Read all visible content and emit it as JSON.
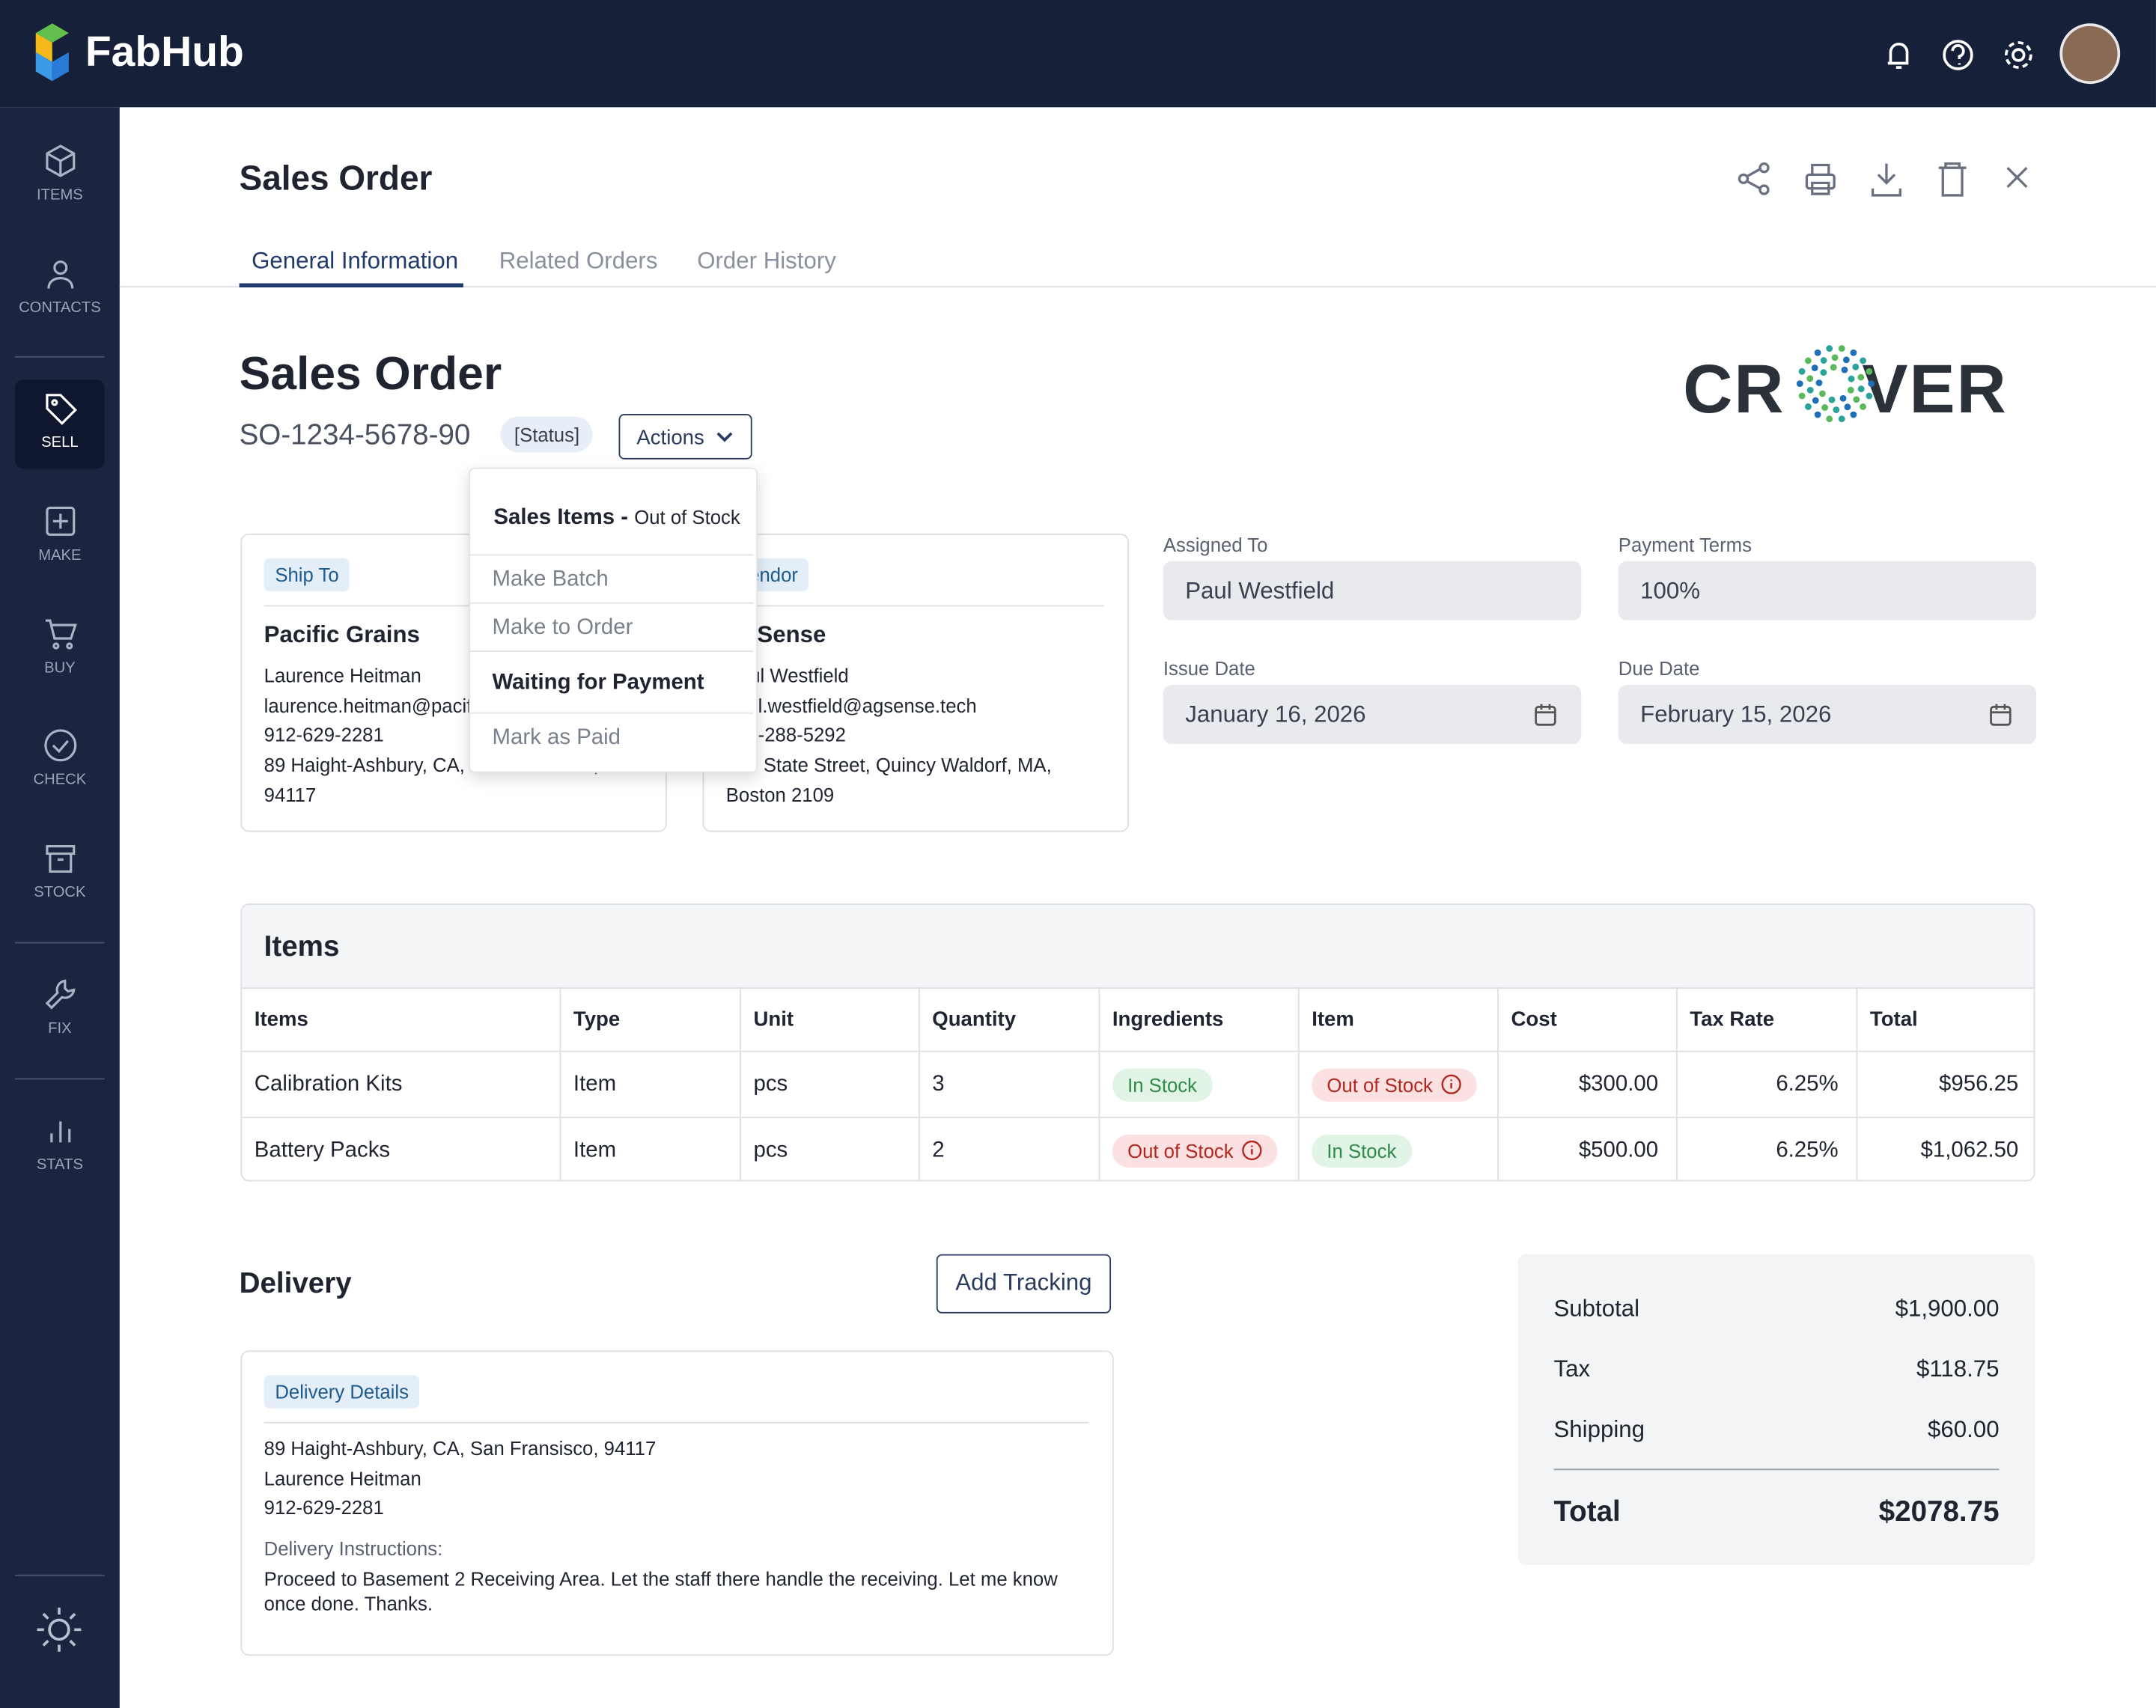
{
  "app": {
    "brand": "FabHub"
  },
  "nav": [
    "ITEMS",
    "CONTACTS",
    "SELL",
    "MAKE",
    "BUY",
    "CHECK",
    "STOCK",
    "FIX",
    "STATS"
  ],
  "header": {
    "title": "Sales Order",
    "tabs": [
      "General Information",
      "Related Orders",
      "Order History"
    ]
  },
  "order": {
    "title": "Sales Order",
    "number": "SO-1234-5678-90",
    "status": "[Status]",
    "actions": "Actions",
    "logo_left": "CR",
    "logo_right": "VER"
  },
  "dropdown": {
    "heading": "Sales Items -",
    "heading_note": "Out of Stock",
    "items": [
      "Make Batch",
      "Make to Order",
      "Waiting for Payment",
      "Mark as Paid"
    ]
  },
  "ship_to": {
    "label": "Ship To",
    "name": "Pacific Grains",
    "contact": "Laurence Heitman",
    "email": "laurence.heitman@pacificgrains.com",
    "phone": "912-629-2281",
    "address": "89 Haight-Ashbury, CA, San Fransisco, 94117"
  },
  "vendor": {
    "label": "Vendor",
    "name": "AgSense",
    "contact": "Paul Westfield",
    "email": "paul.westfield@agsense.tech",
    "phone": "617-288-5292",
    "address": "123 State Street, Quincy Waldorf, MA, Boston 2109"
  },
  "fields": [
    {
      "label": "Assigned To",
      "value": "Paul Westfield"
    },
    {
      "label": "Payment Terms",
      "value": "100%"
    },
    {
      "label": "Issue Date",
      "value": "January 16, 2026"
    },
    {
      "label": "Due Date",
      "value": "February 15, 2026"
    }
  ],
  "items": {
    "title": "Items",
    "columns": [
      "Items",
      "Type",
      "Unit",
      "Quantity",
      "Ingredients",
      "Item",
      "Cost",
      "Tax Rate",
      "Total"
    ],
    "rows": [
      [
        "Calibration Kits",
        "Item",
        "pcs",
        "3",
        {
          "text": "In Stock",
          "color": "green"
        },
        {
          "text": "Out of Stock",
          "color": "red"
        },
        "$300.00",
        "6.25%",
        "$956.25"
      ],
      [
        "Battery Packs",
        "Item",
        "pcs",
        "2",
        {
          "text": "Out of Stock",
          "color": "red"
        },
        {
          "text": "In Stock",
          "color": "green"
        },
        "$500.00",
        "6.25%",
        "$1,062.50"
      ]
    ]
  },
  "delivery": {
    "title": "Delivery",
    "button": "Add Tracking",
    "details_label": "Delivery Details",
    "address": "89 Haight-Ashbury, CA, San Fransisco, 94117",
    "contact": "Laurence Heitman",
    "phone": "912-629-2281",
    "instructions_label": "Delivery Instructions:",
    "instructions": "Proceed to Basement 2 Receiving Area. Let the staff there handle the receiving. Let me know once done. Thanks."
  },
  "summary": {
    "rows": [
      {
        "label": "Subtotal",
        "value": "$1,900.00"
      },
      {
        "label": "Tax",
        "value": "$118.75"
      },
      {
        "label": "Shipping",
        "value": "$60.00"
      }
    ],
    "total": {
      "label": "Total",
      "value": "$2078.75"
    }
  }
}
